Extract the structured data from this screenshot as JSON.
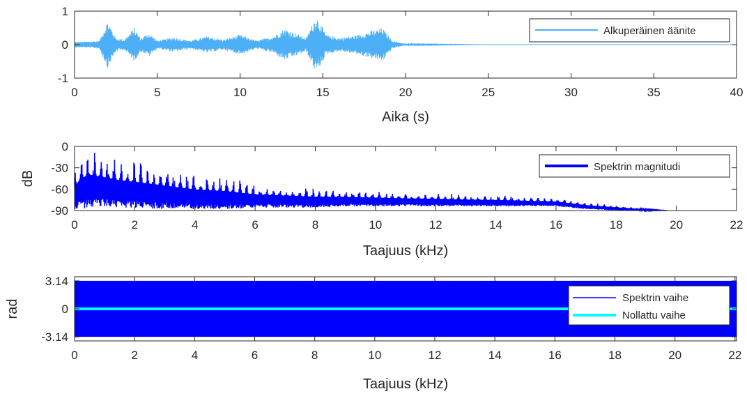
{
  "chart_data": [
    {
      "type": "line",
      "xlabel": "Aika (s)",
      "ylabel": "",
      "xlim": [
        0,
        40
      ],
      "ylim": [
        -1,
        1
      ],
      "xticks": [
        "0",
        "5",
        "10",
        "15",
        "20",
        "25",
        "30",
        "35",
        "40"
      ],
      "yticks": [
        "-1",
        "0",
        "1"
      ],
      "legend_position": "top-right",
      "series": [
        {
          "name": "Alkuperäinen äänite",
          "color": "#4DAFF5",
          "x": [
            0,
            1,
            1.5,
            2.0,
            2.5,
            3.0,
            3.6,
            4.0,
            4.5,
            5.0,
            6.0,
            7.0,
            8.0,
            9.0,
            10.0,
            11.0,
            12.0,
            12.7,
            13.2,
            14.0,
            14.6,
            15.2,
            16.0,
            17.0,
            18.0,
            18.6,
            19.2,
            20.0,
            25,
            30,
            35,
            40
          ],
          "y_envelope": [
            0.08,
            0.1,
            0.12,
            0.72,
            0.2,
            0.15,
            0.5,
            0.2,
            0.35,
            0.12,
            0.22,
            0.12,
            0.25,
            0.15,
            0.3,
            0.12,
            0.25,
            0.48,
            0.38,
            0.2,
            0.88,
            0.3,
            0.2,
            0.28,
            0.42,
            0.5,
            0.12,
            0.02,
            0,
            0,
            0,
            0
          ]
        }
      ]
    },
    {
      "type": "line",
      "xlabel": "Taajuus (kHz)",
      "ylabel": "dB",
      "xlim": [
        0,
        22
      ],
      "ylim": [
        -90,
        0
      ],
      "xticks": [
        "0",
        "2",
        "4",
        "6",
        "8",
        "10",
        "12",
        "14",
        "16",
        "18",
        "20",
        "22"
      ],
      "yticks": [
        "0",
        "-30",
        "-60",
        "-90"
      ],
      "legend_position": "top-right",
      "series": [
        {
          "name": "Spektrin magnitudi",
          "color": "#0000FF",
          "x": [
            0,
            0.2,
            0.5,
            1.0,
            1.5,
            2.0,
            3.0,
            4.0,
            5.0,
            6.0,
            7.0,
            8.0,
            9.0,
            10.0,
            11.0,
            12.0,
            13.0,
            14.0,
            15.0,
            16.0,
            17.0,
            18.0,
            19.0,
            19.7
          ],
          "upper_envelope_db": [
            -30,
            -10,
            -2,
            -10,
            -16,
            -20,
            -28,
            -38,
            -42,
            -52,
            -55,
            -58,
            -60,
            -62,
            -64,
            -65,
            -67,
            -68,
            -70,
            -72,
            -78,
            -82,
            -87,
            -90
          ],
          "lower_envelope_db": [
            -90,
            -88,
            -86,
            -84,
            -86,
            -86,
            -88,
            -88,
            -88,
            -86,
            -86,
            -86,
            -84,
            -84,
            -84,
            -84,
            -84,
            -84,
            -84,
            -84,
            -88,
            -90,
            -90,
            -90
          ]
        }
      ]
    },
    {
      "type": "line",
      "xlabel": "Taajuus (kHz)",
      "ylabel": "rad",
      "xlim": [
        0,
        22.05
      ],
      "ylim": [
        -3.6,
        3.6
      ],
      "xticks": [
        "0",
        "2",
        "4",
        "6",
        "8",
        "10",
        "12",
        "14",
        "16",
        "18",
        "20",
        "22"
      ],
      "yticks": [
        "3.14",
        "0",
        "-3.14"
      ],
      "legend_position": "top-right",
      "series": [
        {
          "name": "Spektrin vaihe",
          "color": "#0000FF",
          "x": [
            0,
            22.05
          ],
          "y_range": [
            -3.14,
            3.14
          ]
        },
        {
          "name": "Nollattu vaihe",
          "color": "#00FFFF",
          "x": [
            0,
            22.05
          ],
          "y": [
            0,
            0
          ]
        }
      ]
    }
  ]
}
